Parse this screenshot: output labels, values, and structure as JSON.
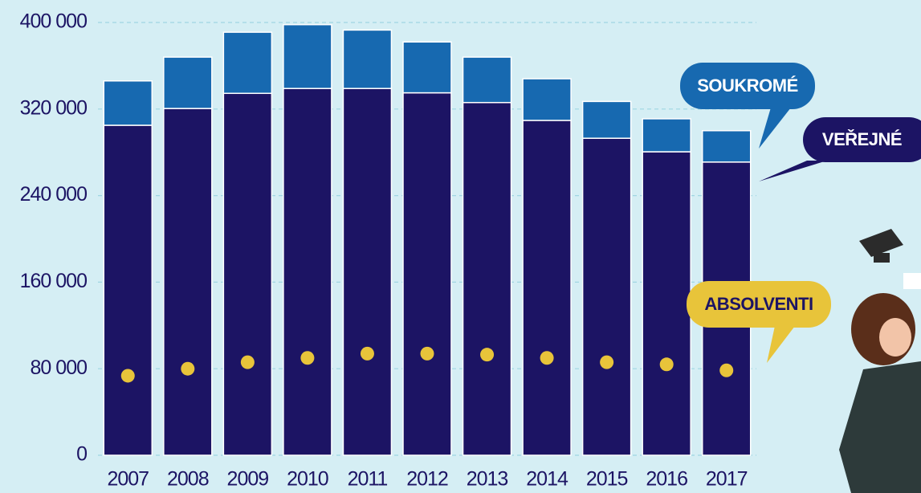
{
  "chart_data": {
    "type": "bar",
    "stacked": true,
    "categories": [
      "2007",
      "2008",
      "2009",
      "2010",
      "2011",
      "2012",
      "2013",
      "2014",
      "2015",
      "2016",
      "2017"
    ],
    "series": [
      {
        "name": "VEŘEJNÉ",
        "color": "#1c1464",
        "values": [
          305000,
          320500,
          334500,
          339000,
          339000,
          335000,
          326000,
          309500,
          293000,
          280500,
          271000
        ]
      },
      {
        "name": "SOUKROMÉ",
        "color": "#1769b0",
        "values": [
          41000,
          47500,
          56500,
          59000,
          54000,
          47000,
          42000,
          38500,
          34000,
          30500,
          29000
        ]
      },
      {
        "name": "ABSOLVENTI",
        "color": "#e8c43a",
        "type": "scatter",
        "values": [
          73500,
          80000,
          86000,
          90000,
          94000,
          94000,
          93000,
          90000,
          86000,
          84000,
          78500
        ]
      }
    ],
    "ylim": [
      0,
      400000
    ],
    "yticks": [
      0,
      {
        "value": 80000,
        "label": "80 000"
      },
      {
        "value": 160000,
        "label": "160 000"
      },
      {
        "value": 240000,
        "label": "240 000"
      },
      {
        "value": 320000,
        "label": "320 000"
      },
      {
        "value": 400000,
        "label": "400 000"
      }
    ],
    "grid": true
  }
}
